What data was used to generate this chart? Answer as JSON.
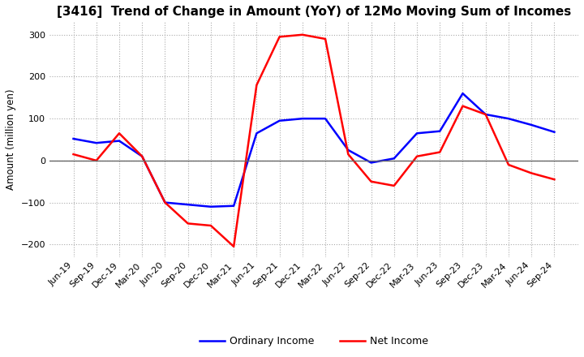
{
  "title": "[3416]  Trend of Change in Amount (YoY) of 12Mo Moving Sum of Incomes",
  "ylabel": "Amount (million yen)",
  "ylim": [
    -230,
    330
  ],
  "yticks": [
    -200,
    -100,
    0,
    100,
    200,
    300
  ],
  "x_labels": [
    "Jun-19",
    "Sep-19",
    "Dec-19",
    "Mar-20",
    "Jun-20",
    "Sep-20",
    "Dec-20",
    "Mar-21",
    "Jun-21",
    "Sep-21",
    "Dec-21",
    "Mar-22",
    "Jun-22",
    "Sep-22",
    "Dec-22",
    "Mar-23",
    "Jun-23",
    "Sep-23",
    "Dec-23",
    "Mar-24",
    "Jun-24",
    "Sep-24"
  ],
  "ordinary_income": [
    52,
    42,
    47,
    10,
    -100,
    -105,
    -110,
    -108,
    65,
    95,
    100,
    100,
    25,
    -5,
    5,
    65,
    70,
    160,
    110,
    100,
    85,
    68
  ],
  "net_income": [
    15,
    0,
    65,
    10,
    -100,
    -150,
    -155,
    -205,
    180,
    295,
    300,
    290,
    15,
    -50,
    -60,
    10,
    20,
    130,
    110,
    -10,
    -30,
    -45
  ],
  "ordinary_color": "#0000ff",
  "net_color": "#ff0000",
  "grid_color": "#aaaaaa",
  "zeroline_color": "#666666",
  "background_color": "#ffffff",
  "title_fontsize": 11,
  "label_fontsize": 8.5,
  "tick_fontsize": 8
}
